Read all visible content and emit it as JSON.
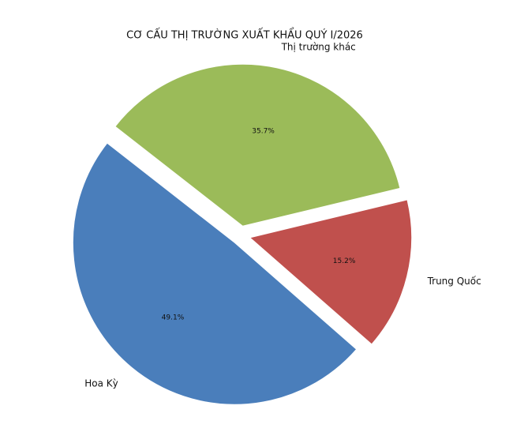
{
  "chart_data": {
    "type": "pie",
    "title": "CƠ CẤU THỊ TRƯỜNG XUẤT KHẨU QUÝ I/2026",
    "categories": [
      "Hoa Kỳ",
      "Thị trường khác",
      "Trung Quốc"
    ],
    "values": [
      49.1,
      35.7,
      15.2
    ],
    "value_labels": [
      "49.1%",
      "35.7%",
      "15.2%"
    ],
    "colors": [
      "#4a7ebb",
      "#9bbb59",
      "#c0504d"
    ]
  }
}
